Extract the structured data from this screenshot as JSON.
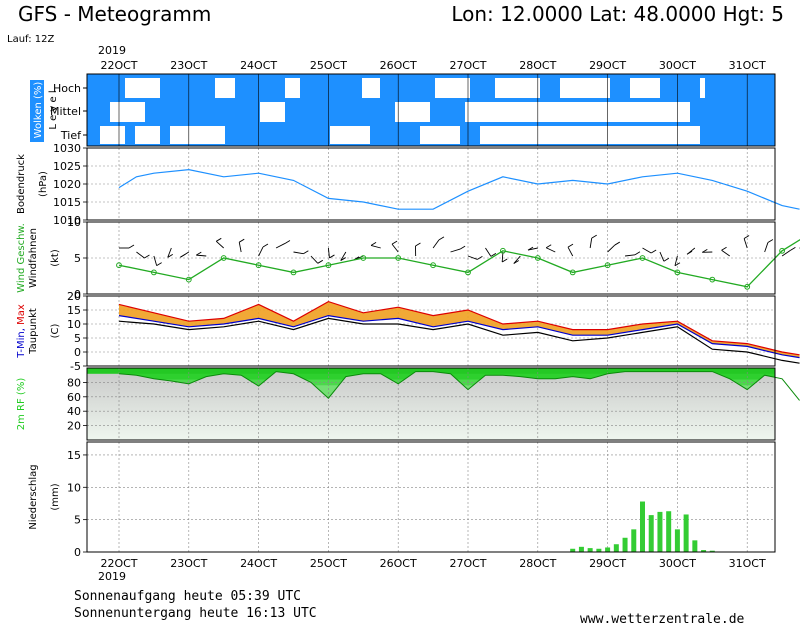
{
  "header": {
    "title": "GFS - Meteogramm",
    "location": "Lon: 12.0000 Lat: 48.0000 Hgt: 5",
    "run": "Lauf: 12Z"
  },
  "date_axis": {
    "year": "2019",
    "days": [
      "22OCT",
      "23OCT",
      "24OCT",
      "25OCT",
      "26OCT",
      "27OCT",
      "28OCT",
      "29OCT",
      "30OCT",
      "31OCT"
    ]
  },
  "footer": {
    "sunrise": "Sonnenaufgang heute 05:39 UTC",
    "sunset": "Sonnenuntergang heute 16:13 UTC",
    "site": "www.wetterzentrale.de"
  },
  "colors": {
    "cloud": "#1e90ff",
    "pressure": "#1e90ff",
    "wind": "#22aa22",
    "tmin": "#0000cc",
    "tmax": "#dd0000",
    "humidity": "#22cc22",
    "precip": "#33cc33"
  },
  "chart_data": [
    {
      "type": "heatmap",
      "ylabel": "Wolken (%)",
      "ylabel2": "L e v e l",
      "levels": [
        "Hoch",
        "Mittel",
        "Tief"
      ]
    },
    {
      "type": "line",
      "ylabel": "Bodendruck",
      "unit": "(hPa)",
      "ylim": [
        1010,
        1030
      ],
      "yticks": [
        1010,
        1015,
        1020,
        1025,
        1030
      ],
      "x": [
        0,
        0.25,
        0.5,
        1,
        1.5,
        2,
        2.5,
        3,
        3.5,
        4,
        4.5,
        5,
        5.5,
        6,
        6.5,
        7,
        7.5,
        8,
        8.5,
        9,
        9.5,
        9.75
      ],
      "values": [
        1019,
        1022,
        1023,
        1024,
        1022,
        1023,
        1021,
        1016,
        1015,
        1013,
        1013,
        1018,
        1022,
        1020,
        1021,
        1020,
        1022,
        1023,
        1021,
        1018,
        1014,
        1013
      ]
    },
    {
      "type": "line",
      "ylabel": "Wind Geschw.",
      "ylabel2": "Windfahnen",
      "unit": "(kt)",
      "ylim": [
        0,
        10
      ],
      "yticks": [
        0,
        5,
        10
      ],
      "x": [
        0,
        0.5,
        1,
        1.5,
        2,
        2.5,
        3,
        3.5,
        4,
        4.5,
        5,
        5.5,
        6,
        6.5,
        7,
        7.5,
        8,
        8.5,
        9,
        9.5,
        10
      ],
      "values": [
        4,
        3,
        2,
        5,
        4,
        3,
        4,
        5,
        5,
        4,
        3,
        6,
        5,
        3,
        4,
        5,
        3,
        2,
        1,
        6,
        9
      ]
    },
    {
      "type": "area",
      "ylabel": "T-Min, Max",
      "ylabel2": "Taupunkt",
      "unit": "(C)",
      "ylim": [
        -5,
        20
      ],
      "yticks": [
        -5,
        0,
        5,
        10,
        15,
        20
      ],
      "x": [
        0,
        0.5,
        1,
        1.5,
        2,
        2.5,
        3,
        3.5,
        4,
        4.5,
        5,
        5.5,
        6,
        6.5,
        7,
        7.5,
        8,
        8.5,
        9,
        9.5,
        9.75
      ],
      "series": [
        {
          "name": "T-Max",
          "values": [
            17,
            14,
            11,
            12,
            17,
            11,
            18,
            14,
            16,
            13,
            15,
            10,
            11,
            8,
            8,
            10,
            11,
            4,
            3,
            0,
            -1
          ]
        },
        {
          "name": "T-Min",
          "values": [
            13,
            11,
            9,
            10,
            12,
            9,
            13,
            11,
            12,
            9,
            11,
            8,
            9,
            6,
            6,
            8,
            10,
            3,
            2,
            -1,
            -2
          ]
        },
        {
          "name": "Taupunkt",
          "values": [
            11,
            10,
            8,
            9,
            11,
            8,
            12,
            10,
            10,
            8,
            10,
            6,
            7,
            4,
            5,
            7,
            9,
            1,
            0,
            -3,
            -4
          ]
        }
      ]
    },
    {
      "type": "area",
      "ylabel": "2m RF (%)",
      "ylim": [
        0,
        100
      ],
      "yticks": [
        20,
        40,
        60,
        80
      ],
      "x": [
        0,
        0.25,
        0.5,
        0.75,
        1,
        1.25,
        1.5,
        1.75,
        2,
        2.25,
        2.5,
        2.75,
        3,
        3.25,
        3.5,
        3.75,
        4,
        4.25,
        4.5,
        4.75,
        5,
        5.25,
        5.5,
        5.75,
        6,
        6.25,
        6.5,
        6.75,
        7,
        7.25,
        7.5,
        7.75,
        8,
        8.25,
        8.5,
        8.75,
        9,
        9.25,
        9.5,
        9.75
      ],
      "values": [
        92,
        90,
        85,
        82,
        78,
        88,
        92,
        90,
        75,
        95,
        92,
        80,
        58,
        88,
        92,
        92,
        78,
        95,
        95,
        92,
        70,
        90,
        90,
        88,
        85,
        85,
        88,
        85,
        92,
        95,
        95,
        95,
        95,
        95,
        95,
        85,
        70,
        90,
        85,
        55
      ]
    },
    {
      "type": "bar",
      "ylabel": "Niederschlag",
      "unit": "(mm)",
      "ylim": [
        0,
        17
      ],
      "yticks": [
        0,
        5,
        10,
        15
      ],
      "x": [
        6.5,
        6.625,
        6.75,
        6.875,
        7,
        7.125,
        7.25,
        7.375,
        7.5,
        7.625,
        7.75,
        7.875,
        8,
        8.125,
        8.25,
        8.375,
        8.5
      ],
      "values": [
        0.5,
        0.8,
        0.6,
        0.5,
        0.7,
        1.2,
        2.2,
        3.5,
        7.8,
        5.7,
        6.2,
        6.3,
        3.5,
        5.8,
        1.8,
        0.3,
        0.2
      ]
    }
  ]
}
